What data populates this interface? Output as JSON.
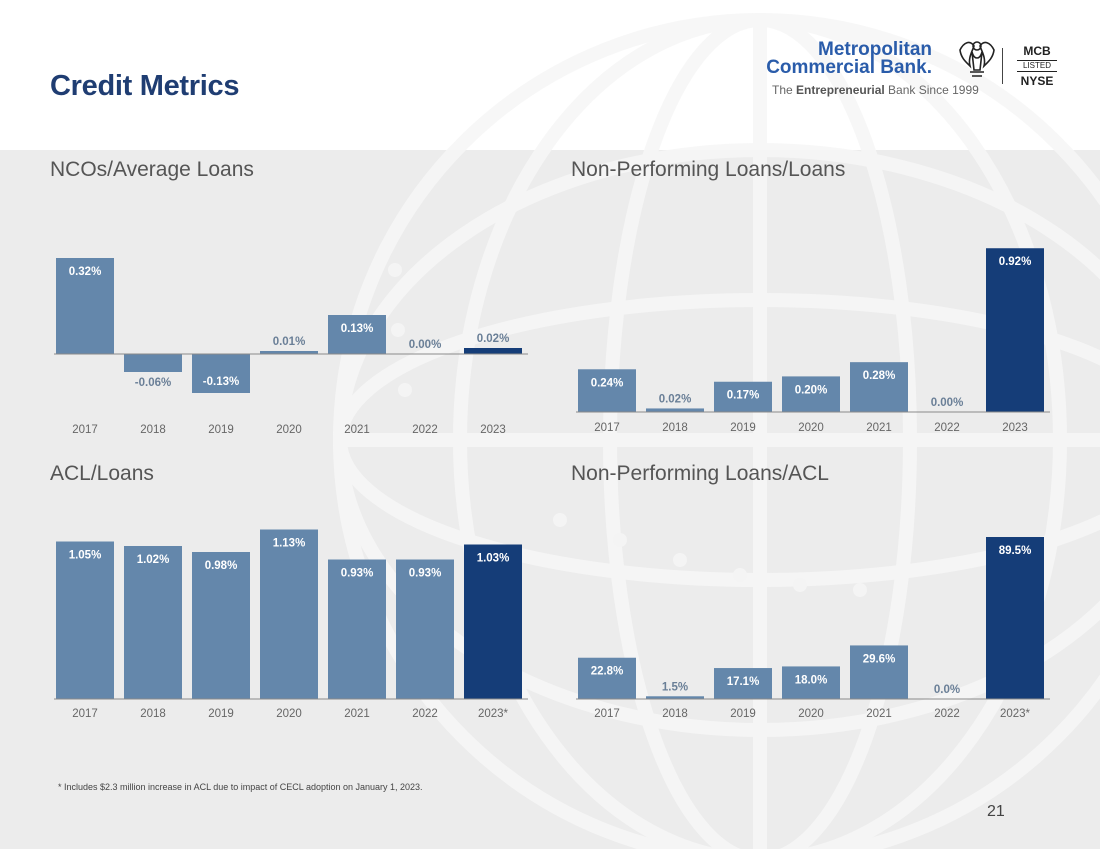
{
  "page": {
    "title": "Credit Metrics",
    "footnote": "*   Includes $2.3 million increase in ACL due to impact of CECL adoption on January  1, 2023.",
    "page_number": "21"
  },
  "logo": {
    "line1": "Metropolitan",
    "line2": "Commercial Bank.",
    "tagline_pre": "The ",
    "tagline_bold": "Entrepreneurial",
    "tagline_post": " Bank Since 1999",
    "badge_top": "MCB",
    "badge_mid": "LISTED",
    "badge_bottom": "NYSE",
    "brand_color": "#2a5caa"
  },
  "colors": {
    "bar_light": "#6487ab",
    "bar_dark": "#153d78",
    "label_on_bar": "#ffffff",
    "label_outside": "#6a7f97",
    "title": "#1f3d72"
  },
  "chart_data": [
    {
      "id": "nco",
      "type": "bar",
      "title": "NCOs/Average Loans",
      "categories": [
        "2017",
        "2018",
        "2019",
        "2020",
        "2021",
        "2022",
        "2023"
      ],
      "values": [
        0.32,
        -0.06,
        -0.13,
        0.01,
        0.13,
        0.0,
        0.02
      ],
      "labels": [
        "0.32%",
        "-0.06%",
        "-0.13%",
        "0.01%",
        "0.13%",
        "0.00%",
        "0.02%"
      ],
      "highlight_last": true,
      "xlabel": "",
      "ylabel": ""
    },
    {
      "id": "npl_loans",
      "type": "bar",
      "title": "Non-Performing Loans/Loans",
      "categories": [
        "2017",
        "2018",
        "2019",
        "2020",
        "2021",
        "2022",
        "2023"
      ],
      "values": [
        0.24,
        0.02,
        0.17,
        0.2,
        0.28,
        0.0,
        0.92
      ],
      "labels": [
        "0.24%",
        "0.02%",
        "0.17%",
        "0.20%",
        "0.28%",
        "0.00%",
        "0.92%"
      ],
      "highlight_last": true,
      "xlabel": "",
      "ylabel": ""
    },
    {
      "id": "acl_loans",
      "type": "bar",
      "title": "ACL/Loans",
      "categories": [
        "2017",
        "2018",
        "2019",
        "2020",
        "2021",
        "2022",
        "2023*"
      ],
      "values": [
        1.05,
        1.02,
        0.98,
        1.13,
        0.93,
        0.93,
        1.03
      ],
      "labels": [
        "1.05%",
        "1.02%",
        "0.98%",
        "1.13%",
        "0.93%",
        "0.93%",
        "1.03%"
      ],
      "highlight_last": true,
      "xlabel": "",
      "ylabel": ""
    },
    {
      "id": "npl_acl",
      "type": "bar",
      "title": "Non-Performing Loans/ACL",
      "categories": [
        "2017",
        "2018",
        "2019",
        "2020",
        "2021",
        "2022",
        "2023*"
      ],
      "values": [
        22.8,
        1.5,
        17.1,
        18.0,
        29.6,
        0.0,
        89.5
      ],
      "labels": [
        "22.8%",
        "1.5%",
        "17.1%",
        "18.0%",
        "29.6%",
        "0.0%",
        "89.5%"
      ],
      "highlight_last": true,
      "xlabel": "",
      "ylabel": ""
    }
  ]
}
